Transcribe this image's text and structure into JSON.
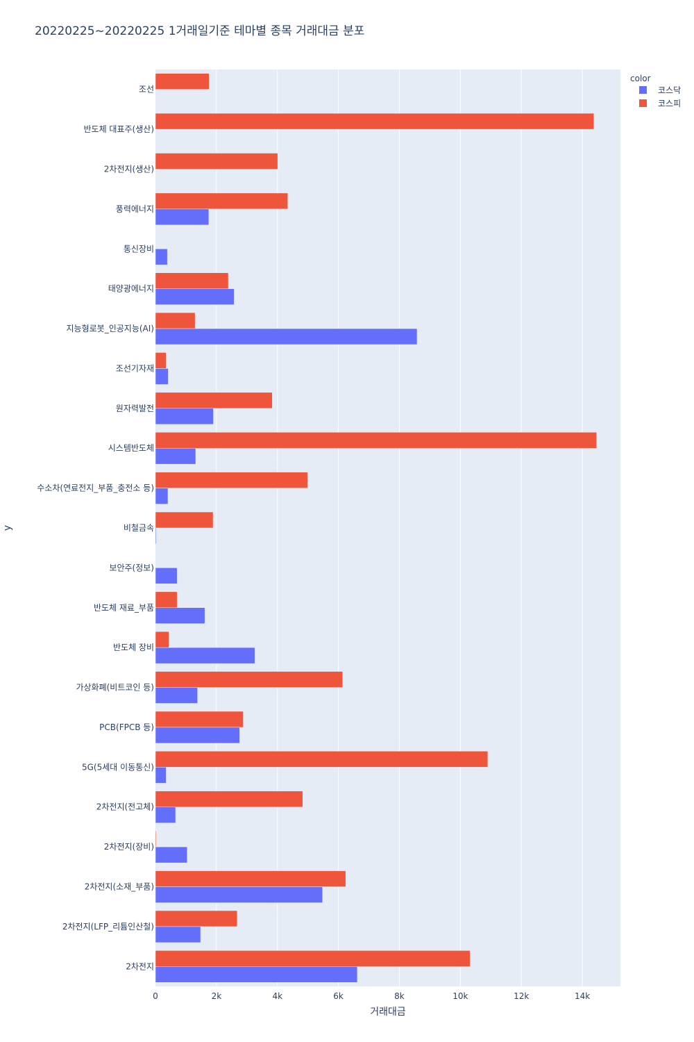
{
  "chart_data": {
    "type": "bar",
    "orientation": "horizontal",
    "barmode": "group",
    "title": "20220225~20220225 1거래일기준 테마별 종목 거래대금 분포",
    "xlabel": "거래대금",
    "ylabel": "y",
    "xlim": [
      0,
      15250
    ],
    "x_ticks": [
      0,
      2000,
      4000,
      6000,
      8000,
      10000,
      12000,
      14000
    ],
    "x_tick_labels": [
      "0",
      "2k",
      "4k",
      "6k",
      "8k",
      "10k",
      "12k",
      "14k"
    ],
    "grid": true,
    "legend_title": "color",
    "legend_position": "top-right",
    "categories": [
      "조선",
      "반도체 대표주(생산)",
      "2차전지(생산)",
      "풍력에너지",
      "통신장비",
      "태양광에너지",
      "지능형로봇_인공지능(AI)",
      "조선기자재",
      "원자력발전",
      "시스템반도체",
      "수소차(연료전지_부품_충전소 등)",
      "비철금속",
      "보안주(정보)",
      "반도체 재료_부품",
      "반도체 장비",
      "가상화폐(비트코인 등)",
      "PCB(FPCB 등)",
      "5G(5세대 이동통신)",
      "2차전지(전고체)",
      "2차전지(장비)",
      "2차전지(소재_부품)",
      "2차전지(LFP_리튬인산철)",
      "2차전지"
    ],
    "series": [
      {
        "name": "코스닥",
        "color": "#636efa",
        "values": [
          0,
          0,
          0,
          1750,
          390,
          2580,
          8580,
          420,
          1900,
          1320,
          410,
          20,
          710,
          1620,
          3260,
          1380,
          2760,
          350,
          660,
          1040,
          5480,
          1480,
          6620
        ]
      },
      {
        "name": "코스피",
        "color": "#ef553b",
        "values": [
          1760,
          14380,
          4010,
          4340,
          0,
          2390,
          1300,
          350,
          3830,
          14470,
          4990,
          1890,
          0,
          710,
          440,
          6140,
          2880,
          10900,
          4830,
          20,
          6240,
          2680,
          10320
        ]
      }
    ]
  }
}
